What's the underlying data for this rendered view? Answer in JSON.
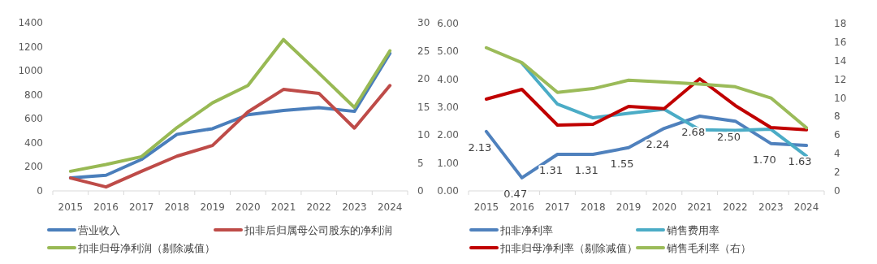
{
  "chart_data": [
    {
      "type": "line",
      "categories": [
        "2015",
        "2016",
        "2017",
        "2018",
        "2019",
        "2020",
        "2021",
        "2022",
        "2023",
        "2024"
      ],
      "series": [
        {
          "name": "营业收入",
          "color": "#4a7ebb",
          "values": [
            109,
            130,
            262,
            471,
            518,
            634,
            669,
            694,
            662,
            1145
          ]
        },
        {
          "name": "扣非后归属母公司股东的净利润",
          "color": "#be4b48",
          "axis": "y2",
          "values": [
            2.3,
            0.7,
            3.5,
            6.2,
            8.1,
            14.1,
            18.1,
            17.4,
            11.2,
            18.8
          ]
        },
        {
          "name": "扣非归母净利润（剔除减值）",
          "color": "#98b954",
          "axis": "y2",
          "values": [
            3.5,
            4.7,
            6.1,
            11.3,
            15.7,
            18.8,
            27.0,
            21.0,
            14.9,
            25.0
          ]
        }
      ],
      "ylim": [
        0,
        1400
      ],
      "yticks": [
        0,
        200,
        400,
        600,
        800,
        1000,
        1200,
        1400
      ],
      "y2lim": [
        0,
        30
      ],
      "y2ticks": [
        0,
        5,
        10,
        15,
        20,
        25,
        30
      ],
      "legend": "bottom",
      "grid": false
    },
    {
      "type": "line",
      "categories": [
        "2015",
        "2016",
        "2017",
        "2018",
        "2019",
        "2020",
        "2021",
        "2022",
        "2023",
        "2024"
      ],
      "series": [
        {
          "name": "扣非净利率",
          "color": "#4f81bd",
          "values": [
            2.13,
            0.47,
            1.31,
            1.31,
            1.55,
            2.24,
            2.68,
            2.5,
            1.7,
            1.63
          ],
          "value_labels": [
            "2.13",
            "0.47",
            "1.31",
            "1.31",
            "1.55",
            "2.24",
            "2.68",
            "2.50",
            "1.70",
            "1.63"
          ]
        },
        {
          "name": "销售费用率",
          "color": "#4bacc6",
          "values": [
            null,
            4.58,
            3.11,
            2.62,
            2.78,
            2.93,
            2.19,
            2.17,
            2.21,
            1.25
          ]
        },
        {
          "name": "扣非归母净利率（剔除减值）",
          "color": "#c00000",
          "values": [
            3.29,
            3.64,
            2.36,
            2.39,
            3.03,
            2.95,
            4.02,
            3.06,
            2.27,
            2.19
          ]
        },
        {
          "name": "销售毛利率（右）",
          "color": "#9bbb59",
          "axis": "y2",
          "values": [
            15.4,
            13.8,
            10.6,
            11.0,
            11.9,
            11.7,
            11.5,
            11.2,
            10.0,
            6.8
          ]
        }
      ],
      "ylim": [
        0,
        6
      ],
      "yticks": [
        {
          "value": 0,
          "label": "0.00"
        },
        {
          "value": 1,
          "label": "1.00"
        },
        {
          "value": 2,
          "label": "2.00"
        },
        {
          "value": 3,
          "label": "3.00"
        },
        {
          "value": 4,
          "label": "4.00"
        },
        {
          "value": 5,
          "label": "5.00"
        },
        {
          "value": 6,
          "label": "6.00"
        }
      ],
      "y2lim": [
        0,
        18
      ],
      "y2ticks": [
        0,
        2,
        4,
        6,
        8,
        10,
        12,
        14,
        16,
        18
      ],
      "legend": "bottom",
      "grid": false
    }
  ]
}
